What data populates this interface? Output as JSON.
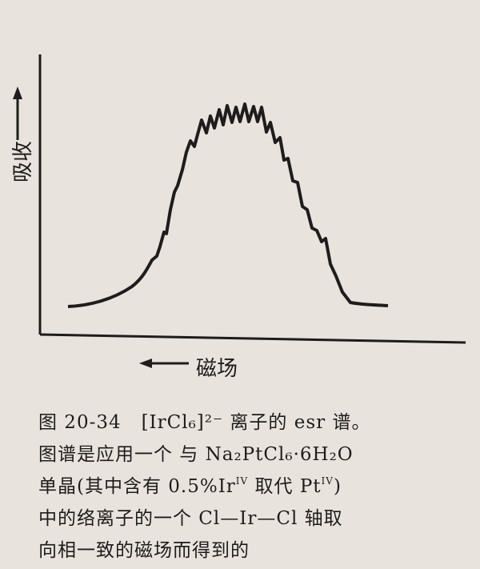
{
  "figure": {
    "y_label": "吸收",
    "x_label": "磁场"
  },
  "caption": {
    "lines": [
      [
        "图 20-34",
        "[IrCl₆]²⁻ 离子的 esr 谱。"
      ],
      [
        "图谱是应用一个 与 Na₂PtCl₆·6H₂O"
      ],
      [
        "单晶(其中含有 0.5%Ir",
        "IV",
        "取代 Pt",
        "IV",
        ")"
      ],
      [
        "中的络离子的一个 Cl—Ir—Cl 轴取"
      ],
      [
        "向相一致的磁场而得到的"
      ]
    ]
  }
}
